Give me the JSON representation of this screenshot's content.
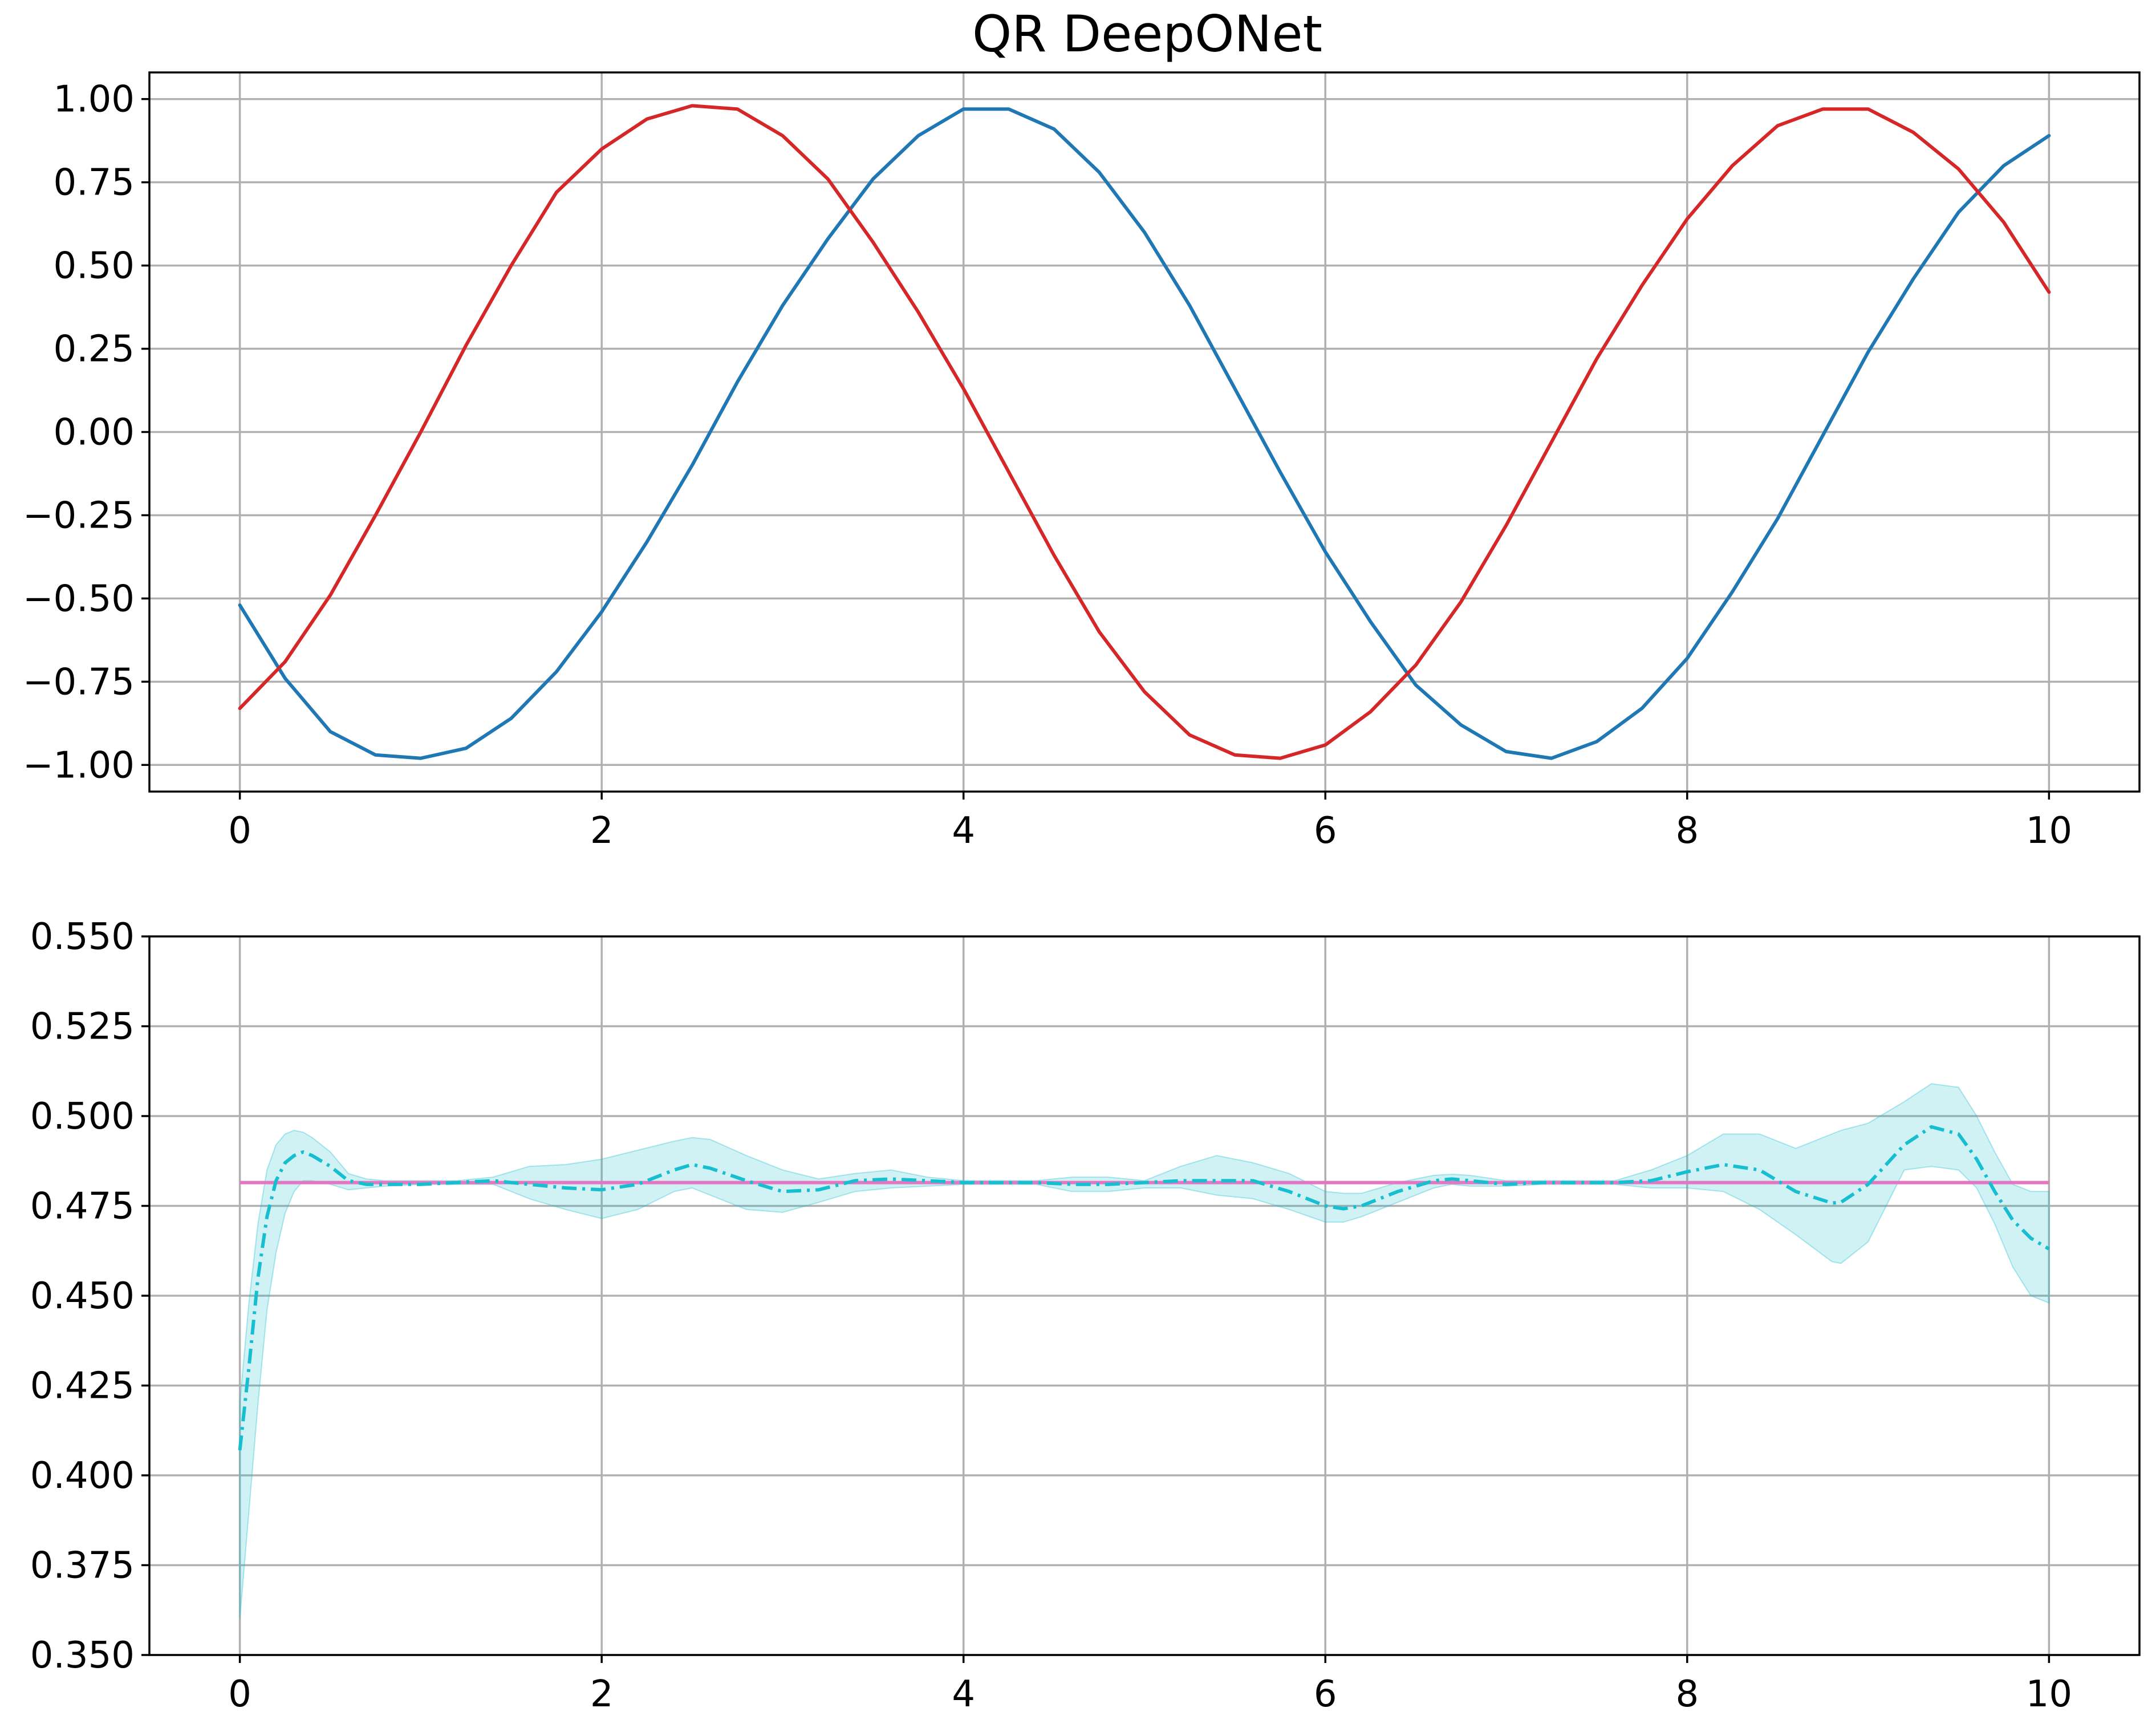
{
  "title": "QR DeepONet",
  "colors": {
    "blue": "#1f77b4",
    "red": "#d62728",
    "cyan": "#17becf",
    "cyan_band": "#17becf",
    "pink": "#e377c2",
    "grid": "#b0b0b0"
  },
  "chart_data": [
    {
      "type": "line",
      "title": "QR DeepONet",
      "xlabel": "",
      "ylabel": "",
      "xlim": [
        -0.5,
        10.5
      ],
      "ylim": [
        -1.08,
        1.08
      ],
      "grid": true,
      "x_ticks": [
        0,
        2,
        4,
        6,
        8,
        10
      ],
      "x_tick_labels": [
        "0",
        "2",
        "4",
        "6",
        "8",
        "10"
      ],
      "y_ticks": [
        1.0,
        0.75,
        0.5,
        0.25,
        0.0,
        -0.25,
        -0.5,
        -0.75,
        -1.0
      ],
      "y_tick_labels": [
        "1.00",
        "0.75",
        "0.50",
        "0.25",
        "0.00",
        "−0.25",
        "−0.50",
        "−0.75",
        "−1.00"
      ],
      "series": [
        {
          "color": "#1f77b4",
          "x": [
            0,
            0.25,
            0.5,
            0.75,
            1,
            1.25,
            1.5,
            1.75,
            2,
            2.25,
            2.5,
            2.75,
            3,
            3.25,
            3.5,
            3.75,
            4,
            4.25,
            4.5,
            4.75,
            5,
            5.25,
            5.5,
            5.75,
            6,
            6.25,
            6.5,
            6.75,
            7,
            7.25,
            7.5,
            7.75,
            8,
            8.25,
            8.5,
            8.75,
            9,
            9.25,
            9.5,
            9.75,
            10
          ],
          "y": [
            -0.52,
            -0.74,
            -0.9,
            -0.97,
            -0.98,
            -0.95,
            -0.86,
            -0.72,
            -0.54,
            -0.33,
            -0.1,
            0.15,
            0.38,
            0.58,
            0.76,
            0.89,
            0.97,
            0.97,
            0.91,
            0.78,
            0.6,
            0.38,
            0.13,
            -0.12,
            -0.36,
            -0.57,
            -0.76,
            -0.88,
            -0.96,
            -0.98,
            -0.93,
            -0.83,
            -0.68,
            -0.48,
            -0.26,
            -0.01,
            0.24,
            0.46,
            0.66,
            0.8,
            0.89
          ]
        },
        {
          "color": "#d62728",
          "x": [
            0,
            0.25,
            0.5,
            0.75,
            1,
            1.25,
            1.5,
            1.75,
            2,
            2.25,
            2.5,
            2.75,
            3,
            3.25,
            3.5,
            3.75,
            4,
            4.25,
            4.5,
            4.75,
            5,
            5.25,
            5.5,
            5.75,
            6,
            6.25,
            6.5,
            6.75,
            7,
            7.25,
            7.5,
            7.75,
            8,
            8.25,
            8.5,
            8.75,
            9,
            9.25,
            9.5,
            9.75,
            10
          ],
          "y": [
            -0.83,
            -0.69,
            -0.49,
            -0.25,
            0.0,
            0.26,
            0.5,
            0.72,
            0.85,
            0.94,
            0.98,
            0.97,
            0.89,
            0.76,
            0.57,
            0.36,
            0.13,
            -0.12,
            -0.37,
            -0.6,
            -0.78,
            -0.91,
            -0.97,
            -0.98,
            -0.94,
            -0.84,
            -0.7,
            -0.51,
            -0.28,
            -0.03,
            0.22,
            0.44,
            0.64,
            0.8,
            0.92,
            0.97,
            0.97,
            0.9,
            0.79,
            0.63,
            0.42
          ]
        }
      ]
    },
    {
      "type": "line",
      "xlabel": "",
      "ylabel": "",
      "xlim": [
        -0.5,
        10.5
      ],
      "ylim": [
        0.35,
        0.55
      ],
      "grid": true,
      "x_ticks": [
        0,
        2,
        4,
        6,
        8,
        10
      ],
      "x_tick_labels": [
        "0",
        "2",
        "4",
        "6",
        "8",
        "10"
      ],
      "y_ticks": [
        0.55,
        0.525,
        0.5,
        0.475,
        0.45,
        0.425,
        0.4,
        0.375,
        0.35
      ],
      "y_tick_labels": [
        "0.550",
        "0.525",
        "0.500",
        "0.475",
        "0.450",
        "0.425",
        "0.400",
        "0.375",
        "0.350"
      ],
      "reference": {
        "color": "#e377c2",
        "x": [
          0,
          10
        ],
        "y": [
          0.4815,
          0.4815
        ]
      },
      "mean": {
        "color": "#17becf",
        "style": "dash-dot",
        "x": [
          0,
          0.05,
          0.1,
          0.15,
          0.2,
          0.25,
          0.3,
          0.35,
          0.4,
          0.5,
          0.6,
          0.7,
          0.8,
          1.0,
          1.2,
          1.4,
          1.6,
          1.8,
          2.0,
          2.2,
          2.4,
          2.5,
          2.6,
          2.8,
          3.0,
          3.2,
          3.4,
          3.6,
          3.8,
          4.0,
          4.2,
          4.4,
          4.6,
          4.8,
          5.0,
          5.2,
          5.4,
          5.6,
          5.8,
          6.0,
          6.1,
          6.2,
          6.4,
          6.6,
          6.7,
          6.8,
          7.0,
          7.2,
          7.4,
          7.6,
          7.8,
          8.0,
          8.2,
          8.4,
          8.6,
          8.8,
          8.85,
          9.0,
          9.2,
          9.35,
          9.5,
          9.6,
          9.7,
          9.8,
          9.9,
          10.0
        ],
        "y": [
          0.407,
          0.43,
          0.455,
          0.472,
          0.482,
          0.487,
          0.489,
          0.49,
          0.489,
          0.486,
          0.482,
          0.481,
          0.481,
          0.481,
          0.4815,
          0.482,
          0.481,
          0.48,
          0.4795,
          0.481,
          0.485,
          0.4865,
          0.4855,
          0.482,
          0.479,
          0.4795,
          0.482,
          0.4825,
          0.482,
          0.4815,
          0.4815,
          0.4815,
          0.481,
          0.481,
          0.4815,
          0.482,
          0.482,
          0.482,
          0.479,
          0.475,
          0.4742,
          0.475,
          0.479,
          0.482,
          0.4825,
          0.482,
          0.481,
          0.4815,
          0.4815,
          0.4815,
          0.482,
          0.4845,
          0.4865,
          0.485,
          0.479,
          0.4758,
          0.476,
          0.481,
          0.492,
          0.497,
          0.495,
          0.488,
          0.479,
          0.471,
          0.466,
          0.463
        ]
      },
      "band": {
        "color": "#17becf",
        "opacity": 0.2,
        "x": [
          0,
          0.05,
          0.1,
          0.15,
          0.2,
          0.25,
          0.3,
          0.35,
          0.4,
          0.5,
          0.6,
          0.7,
          0.8,
          1.0,
          1.2,
          1.4,
          1.6,
          1.8,
          2.0,
          2.2,
          2.4,
          2.5,
          2.6,
          2.8,
          3.0,
          3.2,
          3.4,
          3.6,
          3.8,
          4.0,
          4.2,
          4.4,
          4.6,
          4.8,
          5.0,
          5.2,
          5.4,
          5.6,
          5.8,
          6.0,
          6.1,
          6.2,
          6.4,
          6.6,
          6.7,
          6.8,
          7.0,
          7.2,
          7.4,
          7.6,
          7.8,
          8.0,
          8.2,
          8.4,
          8.6,
          8.8,
          8.85,
          9.0,
          9.2,
          9.35,
          9.5,
          9.6,
          9.7,
          9.8,
          9.9,
          10.0
        ],
        "lower": [
          0.36,
          0.39,
          0.42,
          0.446,
          0.462,
          0.473,
          0.479,
          0.482,
          0.482,
          0.481,
          0.4795,
          0.48,
          0.4805,
          0.481,
          0.481,
          0.481,
          0.477,
          0.474,
          0.4715,
          0.474,
          0.479,
          0.48,
          0.478,
          0.474,
          0.4732,
          0.476,
          0.479,
          0.48,
          0.4805,
          0.481,
          0.481,
          0.481,
          0.479,
          0.479,
          0.48,
          0.48,
          0.478,
          0.477,
          0.474,
          0.4705,
          0.4705,
          0.472,
          0.476,
          0.48,
          0.481,
          0.4805,
          0.4805,
          0.481,
          0.481,
          0.481,
          0.48,
          0.48,
          0.479,
          0.474,
          0.467,
          0.4595,
          0.459,
          0.465,
          0.485,
          0.486,
          0.485,
          0.48,
          0.47,
          0.458,
          0.45,
          0.448
        ],
        "upper": [
          0.42,
          0.448,
          0.47,
          0.485,
          0.492,
          0.495,
          0.496,
          0.4955,
          0.494,
          0.49,
          0.484,
          0.4825,
          0.482,
          0.482,
          0.482,
          0.483,
          0.486,
          0.4865,
          0.488,
          0.4905,
          0.493,
          0.494,
          0.4935,
          0.489,
          0.485,
          0.4825,
          0.484,
          0.485,
          0.483,
          0.482,
          0.482,
          0.482,
          0.483,
          0.483,
          0.482,
          0.486,
          0.489,
          0.487,
          0.484,
          0.479,
          0.4785,
          0.4785,
          0.4815,
          0.4835,
          0.4838,
          0.4835,
          0.482,
          0.482,
          0.482,
          0.482,
          0.485,
          0.489,
          0.495,
          0.495,
          0.491,
          0.495,
          0.496,
          0.498,
          0.504,
          0.509,
          0.508,
          0.5,
          0.49,
          0.481,
          0.479,
          0.479
        ]
      }
    }
  ]
}
